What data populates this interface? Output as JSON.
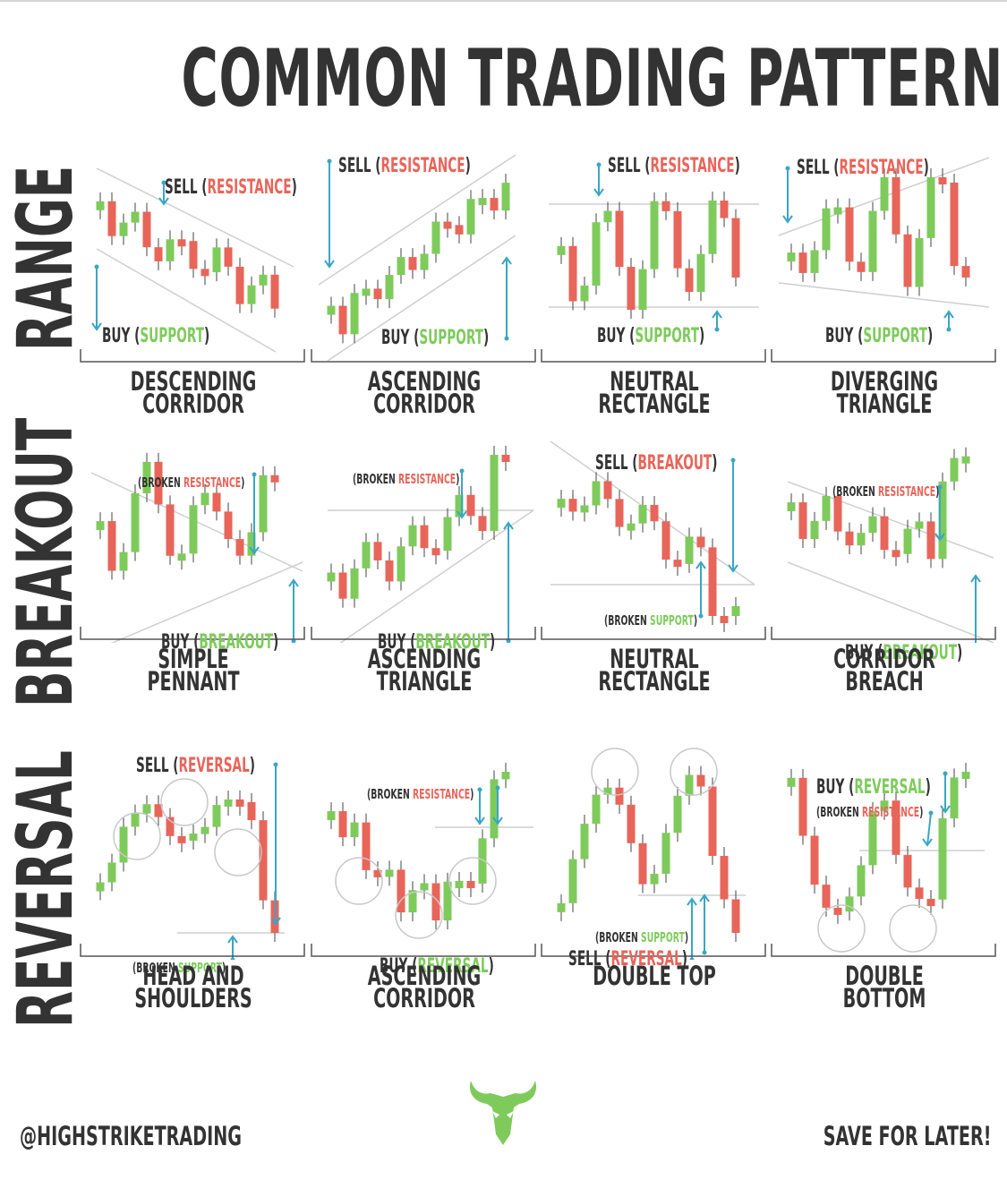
{
  "title": "COMMON TRADING PATTERNS",
  "rows": [
    {
      "label": "RANGE"
    },
    {
      "label": "BREAKOUT"
    },
    {
      "label": "REVERSAL"
    }
  ],
  "colors": {
    "bullish": "#7ecb5c",
    "bearish": "#e8655a",
    "arrow": "#3aa6c4",
    "text": "#333333"
  },
  "patterns": [
    {
      "name": [
        "DESCENDING",
        "CORRIDOR"
      ],
      "annotations": [
        {
          "parts": [
            "SELL (",
            "RESISTANCE",
            ")"
          ]
        },
        {
          "parts": [
            "BUY (",
            "SUPPORT",
            ")"
          ]
        }
      ]
    },
    {
      "name": [
        "ASCENDING",
        "CORRIDOR"
      ],
      "annotations": [
        {
          "parts": [
            "SELL (",
            "RESISTANCE",
            ")"
          ]
        },
        {
          "parts": [
            "BUY (",
            "SUPPORT",
            ")"
          ]
        }
      ]
    },
    {
      "name": [
        "NEUTRAL",
        "RECTANGLE"
      ],
      "annotations": [
        {
          "parts": [
            "SELL (",
            "RESISTANCE",
            ")"
          ]
        },
        {
          "parts": [
            "BUY (",
            "SUPPORT",
            ")"
          ]
        }
      ]
    },
    {
      "name": [
        "DIVERGING",
        "TRIANGLE"
      ],
      "annotations": [
        {
          "parts": [
            "SELL (",
            "RESISTANCE",
            ")"
          ]
        },
        {
          "parts": [
            "BUY (",
            "SUPPORT",
            ")"
          ]
        }
      ]
    },
    {
      "name": [
        "SIMPLE PENNANT",
        ""
      ],
      "annotations": [
        {
          "parts": [
            "(BROKEN ",
            "RESISTANCE",
            ")"
          ]
        },
        {
          "parts": [
            "BUY (",
            "BREAKOUT",
            ")"
          ]
        }
      ]
    },
    {
      "name": [
        "ASCENDING",
        "TRIANGLE"
      ],
      "annotations": [
        {
          "parts": [
            "(BROKEN ",
            "RESISTANCE",
            ")"
          ]
        },
        {
          "parts": [
            "BUY (",
            "BREAKOUT",
            ")"
          ]
        }
      ]
    },
    {
      "name": [
        "NEUTRAL",
        "RECTANGLE"
      ],
      "annotations": [
        {
          "parts": [
            "SELL (",
            "BREAKOUT",
            ")"
          ]
        },
        {
          "parts": [
            "(BROKEN ",
            "SUPPORT",
            ")"
          ]
        }
      ]
    },
    {
      "name": [
        "CORRIDOR",
        "BREACH"
      ],
      "annotations": [
        {
          "parts": [
            "(BROKEN ",
            "RESISTANCE",
            ")"
          ]
        },
        {
          "parts": [
            "BUY (",
            "BREAKOUT",
            ")"
          ]
        }
      ]
    },
    {
      "name": [
        "HEAD AND",
        "SHOULDERS"
      ],
      "annotations": [
        {
          "parts": [
            "SELL (",
            "REVERSAL",
            ")"
          ]
        },
        {
          "parts": [
            "(BROKEN ",
            "SUPPORT",
            ")"
          ]
        }
      ]
    },
    {
      "name": [
        "ASCENDING",
        "CORRIDOR"
      ],
      "annotations": [
        {
          "parts": [
            "(BROKEN ",
            "RESISTANCE",
            ")"
          ]
        },
        {
          "parts": [
            "BUY (",
            "REVERSAL",
            ")"
          ]
        }
      ]
    },
    {
      "name": [
        "DOUBLE TOP",
        ""
      ],
      "annotations": [
        {
          "parts": [
            "(BROKEN ",
            "SUPPORT",
            ")"
          ]
        },
        {
          "parts": [
            "SELL (",
            "REVERSAL",
            ")"
          ]
        }
      ]
    },
    {
      "name": [
        "DOUBLE BOTTOM",
        ""
      ],
      "annotations": [
        {
          "parts": [
            "BUY (",
            "REVERSAL",
            ")"
          ]
        },
        {
          "parts": [
            "(BROKEN ",
            "RESISTANCE",
            ")"
          ]
        }
      ]
    }
  ],
  "footer": {
    "handle": "@HIGHSTRIKETRADING",
    "cta": "SAVE FOR LATER!",
    "logo_icon": "bull-head-icon"
  }
}
